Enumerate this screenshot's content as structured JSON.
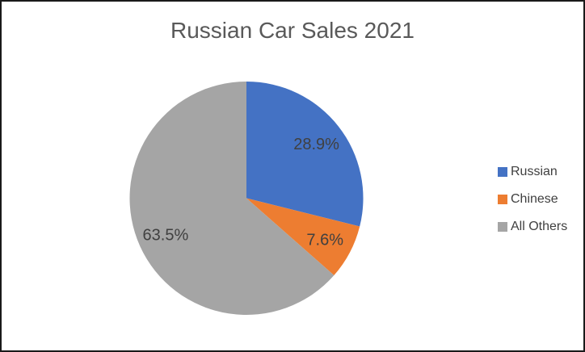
{
  "chart_data": {
    "type": "pie",
    "title": "Russian Car Sales 2021",
    "categories": [
      "Russian",
      "Chinese",
      "All Others"
    ],
    "values": [
      28.9,
      7.6,
      63.5
    ],
    "data_labels": [
      "28.9%",
      "7.6%",
      "63.5%"
    ],
    "colors": [
      "#4472C4",
      "#ED7D31",
      "#A5A5A5"
    ],
    "start_angle_deg": 0,
    "direction": "clockwise",
    "legend_position": "right",
    "title_color": "#595959",
    "data_label_color": "#404040",
    "legend_text_color": "#404040",
    "frame_border_color": "#1a1a1a",
    "background_color": "#ffffff"
  }
}
